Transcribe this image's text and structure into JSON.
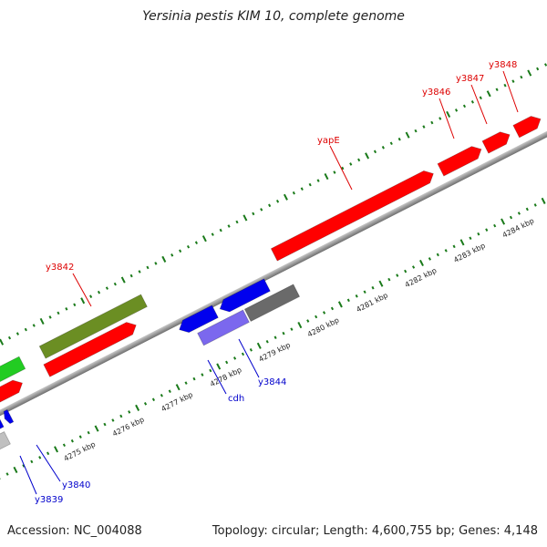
{
  "title": "Yersinia pestis KIM 10, complete genome",
  "footer": {
    "accession": "Accession: NC_004088",
    "summary": "Topology: circular; Length: 4,600,755 bp; Genes: 4,148"
  },
  "colors": {
    "forward_gene": "#ff0000",
    "reverse_gene": "#0000ee",
    "olive_feature": "#6b8e23",
    "green_feature": "#22cc22",
    "gray_feature": "#6a6a6a",
    "light_gray_feature": "#c0c0c0",
    "lavender_feature": "#7b68ee",
    "tick": "#1a7a1a",
    "forward_label": "#dd0000",
    "reverse_label": "#0000cc"
  },
  "scale_labels": [
    "4275 kbp",
    "4276 kbp",
    "4277 kbp",
    "4278 kbp",
    "4279 kbp",
    "4280 kbp",
    "4281 kbp",
    "4282 kbp",
    "4283 kbp",
    "4284 kbp"
  ],
  "gene_labels": {
    "forward": [
      "y3842",
      "yapE",
      "y3846",
      "y3847",
      "y3848"
    ],
    "reverse": [
      "y3839",
      "y3840",
      "cdh",
      "y3844"
    ]
  }
}
